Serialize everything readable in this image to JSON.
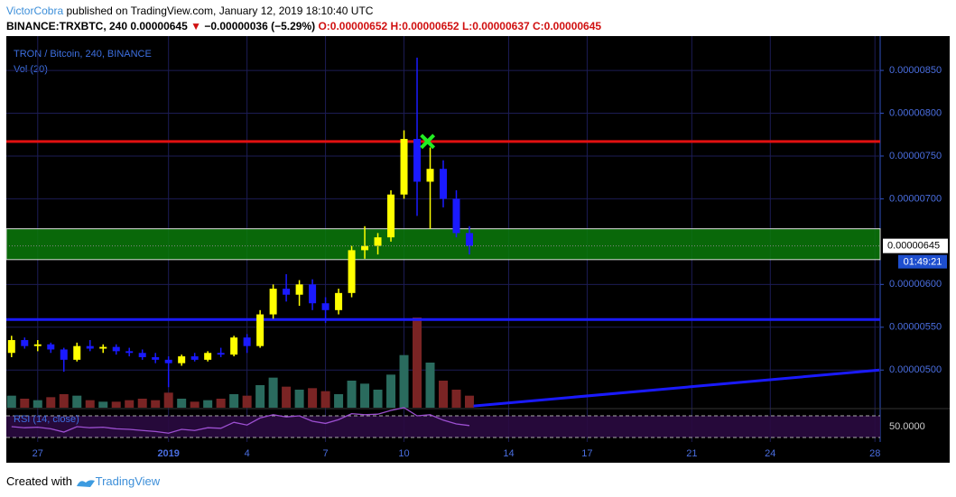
{
  "header": {
    "author": "VictorCobra",
    "published": " published on TradingView.com, January 12, 2019 18:10:40 UTC",
    "symbol": "BINANCE:TRXBTC, 240",
    "price": "0.00000645",
    "arrow": "▼",
    "change": "−0.00000036 (−5.29%)",
    "ohlc": [
      "O:0.00000652",
      "H:0.00000652",
      "L:0.00000637",
      "C:0.00000645"
    ]
  },
  "footer": {
    "created": "Created with",
    "brand": "TradingView"
  },
  "chart_data": {
    "type": "candlestick",
    "title": "TRON / Bitcoin, 240, BINANCE",
    "volume_label": "Vol (20)",
    "rsi_label": "RSI (14, close)",
    "up_color": "#ffff00",
    "down_color": "#1a1aff",
    "vol_up_color": "#2a6b5e",
    "vol_down_color": "#7a2424",
    "rsi_color": "#9c4fd0",
    "x": [
      -1,
      -0.5,
      0,
      0.5,
      1,
      1.5,
      2,
      2.5,
      3,
      3.5,
      4,
      4.5,
      5,
      5.5,
      6,
      6.5,
      7,
      7.5,
      8,
      8.5,
      9,
      9.5,
      10,
      10.5,
      11,
      11.5,
      12,
      12.5,
      13,
      13.5,
      14,
      14.5,
      15,
      15.5,
      16,
      16.5
    ],
    "open": [
      5.2e-06,
      5.35e-06,
      5.28e-06,
      5.3e-06,
      5.24e-06,
      5.12e-06,
      5.28e-06,
      5.25e-06,
      5.27e-06,
      5.22e-06,
      5.2e-06,
      5.15e-06,
      5.12e-06,
      5.08e-06,
      5.16e-06,
      5.12e-06,
      5.2e-06,
      5.18e-06,
      5.38e-06,
      5.28e-06,
      5.65e-06,
      5.95e-06,
      5.88e-06,
      6e-06,
      5.78e-06,
      5.7e-06,
      5.9e-06,
      6.4e-06,
      6.45e-06,
      6.55e-06,
      7.05e-06,
      7.7e-06,
      7.2e-06,
      7.35e-06,
      7e-06,
      6.6e-06
    ],
    "high": [
      5.4e-06,
      5.38e-06,
      5.35e-06,
      5.32e-06,
      5.26e-06,
      5.32e-06,
      5.35e-06,
      5.3e-06,
      5.3e-06,
      5.26e-06,
      5.24e-06,
      5.2e-06,
      5.16e-06,
      5.18e-06,
      5.2e-06,
      5.22e-06,
      5.26e-06,
      5.4e-06,
      5.42e-06,
      5.7e-06,
      6e-06,
      6.12e-06,
      6.05e-06,
      6.06e-06,
      5.85e-06,
      5.95e-06,
      6.45e-06,
      6.68e-06,
      6.6e-06,
      7.1e-06,
      7.8e-06,
      8.65e-06,
      7.6e-06,
      7.45e-06,
      7.1e-06,
      6.68e-06
    ],
    "low": [
      5.15e-06,
      5.25e-06,
      5.22e-06,
      5.2e-06,
      4.98e-06,
      5.1e-06,
      5.22e-06,
      5.2e-06,
      5.18e-06,
      5.16e-06,
      5.12e-06,
      5.08e-06,
      4.8e-06,
      5.05e-06,
      5.1e-06,
      5.1e-06,
      5.15e-06,
      5.16e-06,
      5.2e-06,
      5.26e-06,
      5.6e-06,
      5.8e-06,
      5.75e-06,
      5.7e-06,
      5.55e-06,
      5.65e-06,
      5.85e-06,
      6.3e-06,
      6.35e-06,
      6.5e-06,
      7e-06,
      6.8e-06,
      6.65e-06,
      6.9e-06,
      6.55e-06,
      6.35e-06
    ],
    "close": [
      5.35e-06,
      5.28e-06,
      5.3e-06,
      5.24e-06,
      5.12e-06,
      5.28e-06,
      5.25e-06,
      5.27e-06,
      5.22e-06,
      5.2e-06,
      5.15e-06,
      5.12e-06,
      5.08e-06,
      5.16e-06,
      5.12e-06,
      5.2e-06,
      5.18e-06,
      5.38e-06,
      5.28e-06,
      5.65e-06,
      5.95e-06,
      5.88e-06,
      6e-06,
      5.78e-06,
      5.7e-06,
      5.9e-06,
      6.4e-06,
      6.45e-06,
      6.55e-06,
      7.05e-06,
      7.7e-06,
      7.2e-06,
      7.35e-06,
      7e-06,
      6.6e-06,
      6.45e-06
    ],
    "volume": [
      8,
      6,
      5,
      7,
      9,
      8,
      5,
      4,
      4,
      5,
      6,
      5,
      10,
      6,
      4,
      5,
      6,
      9,
      8,
      15,
      20,
      14,
      12,
      13,
      11,
      9,
      18,
      16,
      12,
      22,
      35,
      60,
      30,
      18,
      12,
      8
    ],
    "rsi": [
      50,
      48,
      49,
      46,
      40,
      50,
      48,
      49,
      46,
      45,
      43,
      41,
      38,
      45,
      43,
      48,
      47,
      58,
      53,
      66,
      72,
      68,
      70,
      60,
      56,
      63,
      74,
      72,
      73,
      80,
      85,
      70,
      72,
      62,
      55,
      52
    ],
    "xlim": [
      -1.2,
      32.2
    ],
    "xticks": [
      {
        "value": 0,
        "label": "27"
      },
      {
        "value": 5,
        "label": "2019"
      },
      {
        "value": 8,
        "label": "4"
      },
      {
        "value": 11,
        "label": "7"
      },
      {
        "value": 14,
        "label": "10"
      },
      {
        "value": 18,
        "label": "14"
      },
      {
        "value": 21,
        "label": "17"
      },
      {
        "value": 25,
        "label": "21"
      },
      {
        "value": 28,
        "label": "24"
      },
      {
        "value": 32,
        "label": "28"
      }
    ],
    "ylim": [
      4.56e-06,
      8.88e-06
    ],
    "yticks": [
      {
        "value": 8.5e-06,
        "label": "0.00000850"
      },
      {
        "value": 8e-06,
        "label": "0.00000800"
      },
      {
        "value": 7.5e-06,
        "label": "0.00000750"
      },
      {
        "value": 7e-06,
        "label": "0.00000700"
      },
      {
        "value": 6e-06,
        "label": "0.00000600"
      },
      {
        "value": 5.5e-06,
        "label": "0.00000550"
      },
      {
        "value": 5e-06,
        "label": "0.00000500"
      }
    ],
    "rsi_lim": [
      21.7,
      80
    ],
    "rsi_bands": [
      30,
      70
    ],
    "rsi_ticks": [
      {
        "value": 50,
        "label": "50.0000"
      }
    ],
    "last_price": {
      "value": 6.45e-06,
      "label": "0.00000645"
    },
    "countdown": "01:49:21",
    "levels": [
      {
        "value": 7.67e-06,
        "color": "#e01010"
      },
      {
        "value": 5.59e-06,
        "color": "#1a1aff"
      }
    ],
    "zone": {
      "from": 6.29e-06,
      "to": 6.65e-06,
      "color": "#0a7a0a"
    },
    "trendline": {
      "x": [
        16.66,
        32.17
      ],
      "y": [
        4.58e-06,
        5e-06
      ],
      "color": "#1a1aff"
    },
    "marker": {
      "x": 14.9,
      "y": 7.67e-06,
      "color": "#22ee22"
    },
    "grid": true
  }
}
